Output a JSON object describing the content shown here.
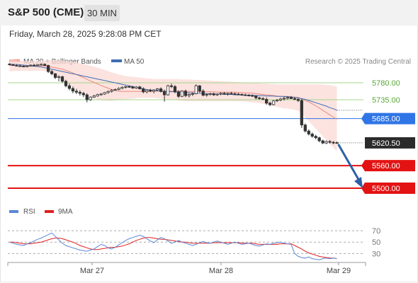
{
  "header": {
    "title": "S&P 500 (CME)",
    "timeframe": "30 MIN",
    "timestamp": "Friday, March 28, 2025 9:28:08 PM CET"
  },
  "legend": {
    "ma20_label": "MA 20 + Bollinger Bands",
    "ma50_label": "MA 50",
    "source": "Research © 2025 Trading Central",
    "ma20_color": "#f0877c",
    "ma50_color": "#3f6db3"
  },
  "rsi_legend": {
    "rsi_label": "RSI",
    "ma_label": "9MA",
    "rsi_color": "#5b86d6",
    "ma_color": "#e02020"
  },
  "chart_data": {
    "type": "candlestick",
    "y_range": [
      5470,
      5812
    ],
    "x_labels": [
      "Mar 27",
      "Mar 28",
      "Mar 29"
    ],
    "levels": [
      {
        "value": 5780.0,
        "label": "5780.00",
        "kind": "resistance-minor",
        "color": "#a5d58c"
      },
      {
        "value": 5735.0,
        "label": "5735.00",
        "kind": "resistance-minor",
        "color": "#a5d58c"
      },
      {
        "value": 5685.0,
        "label": "5685.00",
        "kind": "pivot",
        "color": "#2f75e6"
      },
      {
        "value": 5620.5,
        "label": "5620.50",
        "kind": "last-price",
        "color": "#222222"
      },
      {
        "value": 5560.0,
        "label": "5560.00",
        "kind": "support",
        "color": "#e31313"
      },
      {
        "value": 5500.0,
        "label": "5500.00",
        "kind": "support",
        "color": "#e31313"
      }
    ],
    "candles": [
      [
        5830,
        5832,
        5826,
        5828
      ],
      [
        5828,
        5830,
        5825,
        5826
      ],
      [
        5826,
        5829,
        5824,
        5825
      ],
      [
        5825,
        5828,
        5823,
        5824
      ],
      [
        5824,
        5827,
        5822,
        5823
      ],
      [
        5823,
        5826,
        5821,
        5825
      ],
      [
        5825,
        5829,
        5823,
        5827
      ],
      [
        5827,
        5830,
        5824,
        5826
      ],
      [
        5826,
        5829,
        5825,
        5828
      ],
      [
        5828,
        5831,
        5826,
        5829
      ],
      [
        5829,
        5832,
        5824,
        5826
      ],
      [
        5826,
        5828,
        5806,
        5810
      ],
      [
        5810,
        5814,
        5800,
        5804
      ],
      [
        5804,
        5806,
        5790,
        5794
      ],
      [
        5794,
        5800,
        5784,
        5796
      ],
      [
        5796,
        5799,
        5780,
        5784
      ],
      [
        5784,
        5788,
        5768,
        5772
      ],
      [
        5772,
        5778,
        5760,
        5765
      ],
      [
        5765,
        5770,
        5752,
        5758
      ],
      [
        5758,
        5764,
        5750,
        5755
      ],
      [
        5755,
        5760,
        5746,
        5752
      ],
      [
        5752,
        5756,
        5742,
        5748
      ],
      [
        5748,
        5752,
        5728,
        5735
      ],
      [
        5735,
        5744,
        5732,
        5742
      ],
      [
        5742,
        5748,
        5740,
        5745
      ],
      [
        5745,
        5751,
        5743,
        5749
      ],
      [
        5749,
        5753,
        5746,
        5750
      ],
      [
        5750,
        5756,
        5748,
        5754
      ],
      [
        5754,
        5760,
        5751,
        5757
      ],
      [
        5757,
        5763,
        5754,
        5760
      ],
      [
        5760,
        5765,
        5758,
        5762
      ],
      [
        5762,
        5768,
        5760,
        5765
      ],
      [
        5765,
        5771,
        5763,
        5768
      ],
      [
        5768,
        5772,
        5765,
        5770
      ],
      [
        5770,
        5773,
        5767,
        5769
      ],
      [
        5769,
        5772,
        5764,
        5766
      ],
      [
        5766,
        5771,
        5764,
        5769
      ],
      [
        5769,
        5772,
        5762,
        5764
      ],
      [
        5764,
        5768,
        5752,
        5756
      ],
      [
        5756,
        5762,
        5752,
        5760
      ],
      [
        5760,
        5764,
        5755,
        5758
      ],
      [
        5758,
        5763,
        5752,
        5761
      ],
      [
        5761,
        5766,
        5758,
        5764
      ],
      [
        5764,
        5768,
        5754,
        5757
      ],
      [
        5757,
        5762,
        5730,
        5748
      ],
      [
        5748,
        5775,
        5746,
        5772
      ],
      [
        5772,
        5778,
        5766,
        5770
      ],
      [
        5770,
        5774,
        5752,
        5756
      ],
      [
        5756,
        5760,
        5740,
        5744
      ],
      [
        5744,
        5760,
        5742,
        5758
      ],
      [
        5758,
        5762,
        5742,
        5746
      ],
      [
        5746,
        5752,
        5741,
        5749
      ],
      [
        5749,
        5755,
        5745,
        5751
      ],
      [
        5751,
        5776,
        5749,
        5772
      ],
      [
        5772,
        5774,
        5754,
        5758
      ],
      [
        5758,
        5763,
        5744,
        5747
      ],
      [
        5747,
        5752,
        5743,
        5749
      ],
      [
        5749,
        5754,
        5746,
        5751
      ],
      [
        5751,
        5754,
        5745,
        5748
      ],
      [
        5748,
        5752,
        5745,
        5750
      ],
      [
        5750,
        5755,
        5747,
        5752
      ],
      [
        5752,
        5756,
        5748,
        5750
      ],
      [
        5750,
        5754,
        5746,
        5752
      ],
      [
        5752,
        5756,
        5749,
        5751
      ],
      [
        5751,
        5754,
        5748,
        5750
      ],
      [
        5750,
        5753,
        5747,
        5749
      ],
      [
        5749,
        5752,
        5746,
        5748
      ],
      [
        5748,
        5751,
        5745,
        5747
      ],
      [
        5747,
        5750,
        5744,
        5746
      ],
      [
        5746,
        5749,
        5743,
        5745
      ],
      [
        5745,
        5747,
        5736,
        5740
      ],
      [
        5740,
        5743,
        5735,
        5738
      ],
      [
        5738,
        5742,
        5734,
        5736
      ],
      [
        5736,
        5741,
        5722,
        5726
      ],
      [
        5726,
        5730,
        5718,
        5722
      ],
      [
        5722,
        5734,
        5720,
        5732
      ],
      [
        5732,
        5737,
        5729,
        5734
      ],
      [
        5734,
        5740,
        5731,
        5737
      ],
      [
        5737,
        5743,
        5733,
        5739
      ],
      [
        5739,
        5744,
        5735,
        5741
      ],
      [
        5741,
        5745,
        5737,
        5738
      ],
      [
        5738,
        5742,
        5734,
        5736
      ],
      [
        5736,
        5740,
        5729,
        5733
      ],
      [
        5733,
        5737,
        5660,
        5668
      ],
      [
        5668,
        5672,
        5648,
        5652
      ],
      [
        5652,
        5656,
        5640,
        5644
      ],
      [
        5644,
        5648,
        5634,
        5638
      ],
      [
        5638,
        5642,
        5630,
        5634
      ],
      [
        5634,
        5637,
        5622,
        5626
      ],
      [
        5626,
        5629,
        5617,
        5620
      ],
      [
        5620,
        5627,
        5617,
        5624
      ],
      [
        5624,
        5628,
        5618,
        5622
      ],
      [
        5622,
        5625,
        5617,
        5621
      ],
      [
        5621,
        5624,
        5618,
        5620
      ]
    ],
    "ma20": [
      5826,
      5826,
      5825,
      5825,
      5824,
      5824,
      5824,
      5824,
      5825,
      5825,
      5825,
      5824,
      5822,
      5820,
      5818,
      5816,
      5813,
      5810,
      5806,
      5802,
      5798,
      5794,
      5789,
      5785,
      5781,
      5777,
      5773,
      5769,
      5766,
      5762,
      5760,
      5758,
      5757,
      5757,
      5757,
      5757,
      5757,
      5757,
      5757,
      5757,
      5757,
      5757,
      5758,
      5758,
      5758,
      5758,
      5758,
      5758,
      5758,
      5758,
      5758,
      5757,
      5757,
      5757,
      5757,
      5756,
      5756,
      5756,
      5756,
      5755,
      5755,
      5755,
      5755,
      5755,
      5755,
      5754,
      5754,
      5753,
      5753,
      5752,
      5751,
      5750,
      5749,
      5748,
      5747,
      5746,
      5745,
      5744,
      5744,
      5744,
      5743,
      5742,
      5741,
      5737,
      5733,
      5729,
      5724,
      5719,
      5713,
      5707,
      5701,
      5695,
      5689,
      5683
    ],
    "ma50": [
      5830,
      5829,
      5829,
      5828,
      5827,
      5826,
      5825,
      5824,
      5823,
      5822,
      5820,
      5818,
      5816,
      5814,
      5812,
      5810,
      5808,
      5806,
      5804,
      5802,
      5800,
      5798,
      5796,
      5794,
      5792,
      5790,
      5788,
      5786,
      5784,
      5782,
      5780,
      5778,
      5776,
      5774,
      5772,
      5770,
      5768,
      5766,
      5764,
      5762,
      5761,
      5760,
      5759,
      5758,
      5757,
      5757,
      5756,
      5756,
      5755,
      5755,
      5754,
      5754,
      5753,
      5753,
      5752,
      5752,
      5751,
      5751,
      5750,
      5750,
      5750,
      5749,
      5749,
      5749,
      5748,
      5748,
      5748,
      5747,
      5747,
      5747,
      5746,
      5746,
      5746,
      5745,
      5745,
      5745,
      5744,
      5744,
      5744,
      5743,
      5742,
      5741,
      5740,
      5738,
      5736,
      5733,
      5730,
      5727,
      5724,
      5721,
      5718,
      5714,
      5711,
      5707
    ],
    "bb_upper": [
      5842,
      5841,
      5840,
      5839,
      5838,
      5838,
      5838,
      5838,
      5838,
      5838,
      5839,
      5840,
      5840,
      5840,
      5840,
      5839,
      5838,
      5837,
      5836,
      5834,
      5832,
      5830,
      5828,
      5825,
      5823,
      5820,
      5817,
      5814,
      5811,
      5808,
      5805,
      5802,
      5800,
      5798,
      5797,
      5796,
      5795,
      5794,
      5793,
      5792,
      5791,
      5790,
      5790,
      5790,
      5790,
      5790,
      5790,
      5790,
      5790,
      5789,
      5789,
      5789,
      5788,
      5788,
      5787,
      5787,
      5786,
      5786,
      5785,
      5785,
      5784,
      5784,
      5783,
      5783,
      5782,
      5782,
      5781,
      5781,
      5780,
      5780,
      5779,
      5779,
      5778,
      5778,
      5777,
      5777,
      5776,
      5776,
      5776,
      5776,
      5776,
      5776,
      5776,
      5776,
      5776,
      5776,
      5776,
      5776,
      5776,
      5776,
      5775,
      5774,
      5772,
      5770
    ],
    "bb_lower": [
      5810,
      5811,
      5811,
      5812,
      5812,
      5812,
      5812,
      5812,
      5812,
      5812,
      5811,
      5808,
      5803,
      5798,
      5792,
      5786,
      5780,
      5774,
      5768,
      5762,
      5756,
      5750,
      5745,
      5741,
      5738,
      5736,
      5734,
      5733,
      5732,
      5732,
      5733,
      5734,
      5735,
      5736,
      5737,
      5738,
      5739,
      5740,
      5740,
      5740,
      5740,
      5740,
      5739,
      5738,
      5737,
      5736,
      5735,
      5734,
      5733,
      5732,
      5731,
      5731,
      5731,
      5731,
      5731,
      5731,
      5731,
      5731,
      5731,
      5731,
      5731,
      5731,
      5731,
      5731,
      5731,
      5731,
      5731,
      5730,
      5729,
      5728,
      5727,
      5726,
      5724,
      5722,
      5720,
      5718,
      5716,
      5714,
      5712,
      5712,
      5710,
      5708,
      5706,
      5698,
      5688,
      5678,
      5668,
      5658,
      5648,
      5638,
      5628,
      5618,
      5608,
      5598
    ],
    "projection": {
      "from": 5620.5,
      "to": 5500.0,
      "color": "#2f5fa8"
    },
    "rsi": {
      "levels": [
        70,
        50,
        30
      ],
      "y_range": [
        18,
        80
      ],
      "rsi": [
        50,
        48,
        46,
        45,
        44,
        47,
        49,
        52,
        55,
        57,
        60,
        63,
        66,
        60,
        54,
        48,
        44,
        42,
        40,
        38,
        36,
        35,
        34,
        36,
        38,
        42,
        46,
        44,
        40,
        38,
        41,
        45,
        49,
        53,
        56,
        58,
        60,
        62,
        60,
        56,
        52,
        49,
        54,
        58,
        56,
        52,
        48,
        50,
        53,
        50,
        48,
        46,
        44,
        46,
        49,
        51,
        49,
        48,
        50,
        52,
        50,
        48,
        46,
        48,
        50,
        48,
        46,
        47,
        48,
        46,
        44,
        43,
        45,
        47,
        46,
        48,
        49,
        50,
        48,
        47,
        46,
        30,
        25,
        23,
        22,
        24,
        21,
        20,
        19,
        21,
        22,
        21,
        22,
        21
      ],
      "ma": [
        50,
        50,
        49,
        48,
        47,
        47,
        47,
        48,
        49,
        50,
        52,
        54,
        56,
        57,
        57,
        56,
        54,
        52,
        50,
        47,
        44,
        42,
        40,
        38,
        37,
        37,
        38,
        39,
        40,
        41,
        41,
        42,
        43,
        45,
        47,
        50,
        53,
        55,
        57,
        58,
        58,
        57,
        56,
        55,
        55,
        54,
        53,
        52,
        51,
        50,
        50,
        49,
        48,
        48,
        48,
        48,
        48,
        48,
        49,
        49,
        49,
        49,
        49,
        49,
        49,
        49,
        48,
        48,
        48,
        48,
        47,
        46,
        46,
        46,
        46,
        46,
        46,
        47,
        47,
        47,
        47,
        44,
        41,
        38,
        34,
        31,
        29,
        27,
        25,
        24,
        23,
        22,
        22,
        21
      ]
    }
  }
}
